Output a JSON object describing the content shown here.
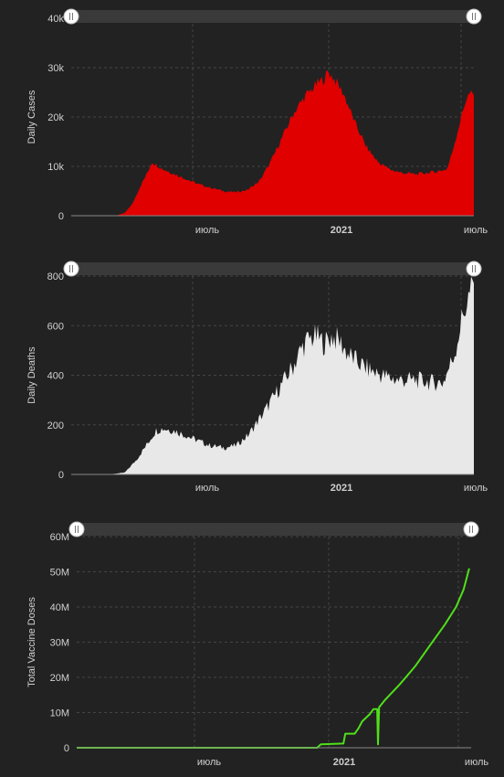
{
  "colors": {
    "background": "#222222",
    "cases": "#e00000",
    "deaths": "#e8e8e8",
    "vaccine": "#4fe01a",
    "grid": "#444444",
    "slider": "#3a3a3a"
  },
  "chart_data": [
    {
      "type": "area",
      "ylabel": "Daily Cases",
      "ylim": [
        0,
        40000
      ],
      "yticks": [
        "0",
        "10k",
        "20k",
        "30k",
        "40k"
      ],
      "xticks": [
        {
          "label": "июль",
          "bold": false
        },
        {
          "label": "2021",
          "bold": true
        },
        {
          "label": "июль",
          "bold": false
        }
      ],
      "series_points": [
        [
          0,
          0
        ],
        [
          8,
          0
        ],
        [
          12,
          100
        ],
        [
          14,
          600
        ],
        [
          16,
          2500
        ],
        [
          18,
          6000
        ],
        [
          20,
          9000
        ],
        [
          21,
          11000
        ],
        [
          22,
          10500
        ],
        [
          24,
          9500
        ],
        [
          27,
          8500
        ],
        [
          30,
          7500
        ],
        [
          33,
          6500
        ],
        [
          36,
          5800
        ],
        [
          40,
          5000
        ],
        [
          43,
          4800
        ],
        [
          46,
          5300
        ],
        [
          49,
          7000
        ],
        [
          52,
          11000
        ],
        [
          55,
          16000
        ],
        [
          58,
          21000
        ],
        [
          61,
          24500
        ],
        [
          63,
          26000
        ],
        [
          64,
          27000
        ],
        [
          66,
          28000
        ],
        [
          67,
          29500
        ],
        [
          69,
          27500
        ],
        [
          71,
          25000
        ],
        [
          72,
          23000
        ],
        [
          74,
          19000
        ],
        [
          77,
          14000
        ],
        [
          80,
          11000
        ],
        [
          83,
          9500
        ],
        [
          86,
          8800
        ],
        [
          90,
          8500
        ],
        [
          95,
          9000
        ],
        [
          98,
          9500
        ],
        [
          99,
          12000
        ],
        [
          101,
          18000
        ],
        [
          103,
          24000
        ],
        [
          104,
          25000
        ],
        [
          105,
          24500
        ]
      ]
    },
    {
      "type": "bar",
      "ylabel": "Daily Deaths",
      "ylim": [
        0,
        800
      ],
      "yticks": [
        "0",
        "200",
        "400",
        "600",
        "800"
      ],
      "xticks": [
        {
          "label": "июль",
          "bold": false
        },
        {
          "label": "2021",
          "bold": true
        },
        {
          "label": "июль",
          "bold": false
        }
      ],
      "series_points": [
        [
          0,
          0
        ],
        [
          10,
          0
        ],
        [
          14,
          8
        ],
        [
          17,
          60
        ],
        [
          20,
          130
        ],
        [
          22,
          180
        ],
        [
          24,
          190
        ],
        [
          27,
          180
        ],
        [
          30,
          160
        ],
        [
          33,
          140
        ],
        [
          36,
          120
        ],
        [
          40,
          110
        ],
        [
          43,
          120
        ],
        [
          46,
          160
        ],
        [
          50,
          250
        ],
        [
          54,
          350
        ],
        [
          58,
          450
        ],
        [
          60,
          520
        ],
        [
          62,
          560
        ],
        [
          64,
          570
        ],
        [
          66,
          540
        ],
        [
          68,
          570
        ],
        [
          70,
          550
        ],
        [
          72,
          500
        ],
        [
          75,
          460
        ],
        [
          78,
          430
        ],
        [
          81,
          410
        ],
        [
          85,
          390
        ],
        [
          90,
          390
        ],
        [
          94,
          380
        ],
        [
          97,
          380
        ],
        [
          100,
          500
        ],
        [
          102,
          650
        ],
        [
          104,
          750
        ],
        [
          105,
          780
        ]
      ]
    },
    {
      "type": "line",
      "ylabel": "Total Vaccine Doses",
      "ylim": [
        0,
        60000000
      ],
      "yticks": [
        "0",
        "10M",
        "20M",
        "30M",
        "40M",
        "50M",
        "60M"
      ],
      "xticks": [
        {
          "label": "июль",
          "bold": false
        },
        {
          "label": "2021",
          "bold": true
        },
        {
          "label": "июль",
          "bold": false
        }
      ],
      "series_points": [
        [
          0,
          0
        ],
        [
          64,
          0
        ],
        [
          64.5,
          500000
        ],
        [
          65,
          1000000
        ],
        [
          71,
          1200000
        ],
        [
          71.5,
          4000000
        ],
        [
          74,
          4000000
        ],
        [
          75,
          5500000
        ],
        [
          76,
          7500000
        ],
        [
          78,
          9500000
        ],
        [
          79,
          11000000
        ],
        [
          80,
          11000000
        ],
        [
          80.2,
          1000000
        ],
        [
          80.5,
          11500000
        ],
        [
          82,
          13500000
        ],
        [
          86,
          18000000
        ],
        [
          90,
          23000000
        ],
        [
          94,
          29000000
        ],
        [
          98,
          35000000
        ],
        [
          101,
          40000000
        ],
        [
          103,
          45000000
        ],
        [
          104.5,
          51000000
        ]
      ]
    }
  ]
}
